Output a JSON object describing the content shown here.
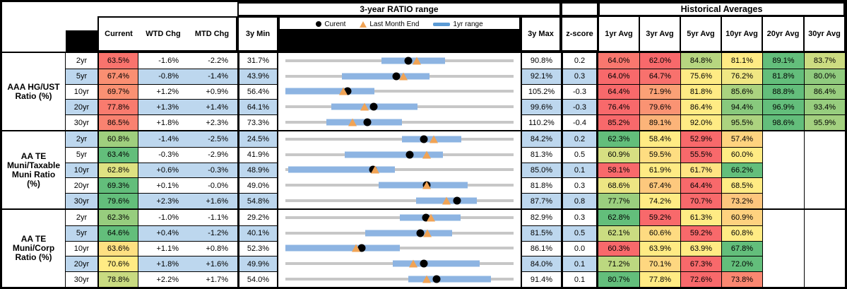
{
  "header": {
    "range_title": "3-year RATIO range",
    "historical_title": "Historical Averages",
    "col_current": "Current",
    "col_wtd": "WTD Chg",
    "col_mtd": "MTD Chg",
    "col_3y_min": "3y Min",
    "col_3y_max": "3y Max",
    "col_zscore": "z-score",
    "avg_cols": [
      "1yr Avg",
      "3yr Avg",
      "5yr Avg",
      "10yr Avg",
      "20yr Avg",
      "30yr Avg"
    ],
    "legend": {
      "current": "Curent",
      "last_month": "Last Month End",
      "range": "1yr range"
    }
  },
  "palette": {
    "scale_red": "#F8696B",
    "scale_yellow": "#FFEB84",
    "scale_green": "#63BE7B",
    "row_stripe_blue": "#BDD7EE",
    "range_bar_blue": "#8DB4E2",
    "track_gray": "#C7C7C7",
    "marker_orange": "#F0A355",
    "marker_black": "#000000"
  },
  "chart_data": {
    "type": "table",
    "title": "3-year RATIO range",
    "embedded_chart": {
      "type": "bullet-range",
      "legend": [
        "Curent",
        "Last Month End",
        "1yr range"
      ],
      "note": "gray track spans 3y min..max; blue bar = 1yr range; black dot = current; orange triangle = last month end"
    },
    "groups": [
      {
        "label_lines": [
          "AAA HG/UST",
          "Ratio (%)"
        ],
        "rows": [
          {
            "tenor": "2yr",
            "current": 63.5,
            "wtd": "-1.6%",
            "mtd": "-2.2%",
            "min": 31.7,
            "max": 90.8,
            "z": "0.2",
            "yr1_range": [
              56.5,
              73.0
            ],
            "avgs": [
              64.0,
              62.0,
              84.8,
              81.1,
              89.1,
              83.7
            ]
          },
          {
            "tenor": "5yr",
            "current": 67.4,
            "wtd": "-0.8%",
            "mtd": "-1.4%",
            "min": 43.9,
            "max": 92.1,
            "z": "0.3",
            "yr1_range": [
              55.9,
              74.3
            ],
            "avgs": [
              64.0,
              64.7,
              75.6,
              76.2,
              81.8,
              80.0
            ]
          },
          {
            "tenor": "10yr",
            "current": 69.7,
            "wtd": "+1.2%",
            "mtd": "+0.9%",
            "min": 56.4,
            "max": 105.2,
            "z": "-0.3",
            "yr1_range": [
              56.4,
              75.4
            ],
            "avgs": [
              64.4,
              71.9,
              81.8,
              85.6,
              88.8,
              86.4
            ]
          },
          {
            "tenor": "20yr",
            "current": 77.8,
            "wtd": "+1.3%",
            "mtd": "+1.4%",
            "min": 64.1,
            "max": 99.6,
            "z": "-0.3",
            "yr1_range": [
              71.2,
              84.7
            ],
            "avgs": [
              76.4,
              79.6,
              86.4,
              94.4,
              96.9,
              93.4
            ]
          },
          {
            "tenor": "30yr",
            "current": 86.5,
            "wtd": "+1.8%",
            "mtd": "+2.3%",
            "min": 73.3,
            "max": 110.2,
            "z": "-0.4",
            "yr1_range": [
              79.9,
              92.1
            ],
            "avgs": [
              85.2,
              89.1,
              92.0,
              95.5,
              98.6,
              95.9
            ]
          }
        ]
      },
      {
        "label_lines": [
          "AA TE",
          "Muni/Taxable",
          "Muni Ratio",
          "(%)"
        ],
        "rows": [
          {
            "tenor": "2yr",
            "current": 60.8,
            "wtd": "-1.4%",
            "mtd": "-2.5%",
            "min": 24.5,
            "max": 84.2,
            "z": "0.2",
            "yr1_range": [
              55.0,
              70.5
            ],
            "avgs": [
              62.3,
              58.4,
              52.9,
              57.4,
              null,
              null
            ]
          },
          {
            "tenor": "5yr",
            "current": 63.4,
            "wtd": "-0.3%",
            "mtd": "-2.9%",
            "min": 41.9,
            "max": 81.3,
            "z": "0.5",
            "yr1_range": [
              52.1,
              69.1
            ],
            "avgs": [
              60.9,
              59.5,
              55.5,
              60.0,
              null,
              null
            ]
          },
          {
            "tenor": "10yr",
            "current": 62.8,
            "wtd": "+0.6%",
            "mtd": "-0.3%",
            "min": 48.9,
            "max": 85.0,
            "z": "0.1",
            "yr1_range": [
              49.3,
              66.2
            ],
            "avgs": [
              58.1,
              61.9,
              61.7,
              66.2,
              null,
              null
            ]
          },
          {
            "tenor": "20yr",
            "current": 69.3,
            "wtd": "+0.1%",
            "mtd": "-0.0%",
            "min": 49.0,
            "max": 81.8,
            "z": "0.3",
            "yr1_range": [
              62.4,
              75.2
            ],
            "avgs": [
              68.6,
              67.4,
              64.4,
              68.5,
              null,
              null
            ]
          },
          {
            "tenor": "30yr",
            "current": 79.6,
            "wtd": "+2.3%",
            "mtd": "+1.6%",
            "min": 54.8,
            "max": 87.7,
            "z": "0.8",
            "yr1_range": [
              73.6,
              82.4
            ],
            "avgs": [
              77.7,
              74.2,
              70.7,
              73.2,
              null,
              null
            ]
          }
        ]
      },
      {
        "label_lines": [
          "AA TE",
          "Muni/Corp",
          "Ratio (%)"
        ],
        "rows": [
          {
            "tenor": "2yr",
            "current": 62.3,
            "wtd": "-1.0%",
            "mtd": "-1.1%",
            "min": 29.2,
            "max": 82.9,
            "z": "0.3",
            "yr1_range": [
              56.1,
              70.5
            ],
            "avgs": [
              62.8,
              59.2,
              61.3,
              60.9,
              null,
              null
            ]
          },
          {
            "tenor": "5yr",
            "current": 64.6,
            "wtd": "+0.4%",
            "mtd": "-1.2%",
            "min": 40.1,
            "max": 81.5,
            "z": "0.5",
            "yr1_range": [
              54.6,
              70.3
            ],
            "avgs": [
              62.1,
              60.6,
              59.2,
              60.8,
              null,
              null
            ]
          },
          {
            "tenor": "10yr",
            "current": 63.6,
            "wtd": "+1.1%",
            "mtd": "+0.8%",
            "min": 52.3,
            "max": 86.1,
            "z": "0.0",
            "yr1_range": [
              52.3,
              69.2
            ],
            "avgs": [
              60.3,
              63.9,
              63.9,
              67.8,
              null,
              null
            ]
          },
          {
            "tenor": "20yr",
            "current": 70.6,
            "wtd": "+1.8%",
            "mtd": "+1.6%",
            "min": 49.9,
            "max": 84.0,
            "z": "0.1",
            "yr1_range": [
              65.9,
              78.9
            ],
            "avgs": [
              71.2,
              70.1,
              67.3,
              72.0,
              null,
              null
            ]
          },
          {
            "tenor": "30yr",
            "current": 78.8,
            "wtd": "+2.2%",
            "mtd": "+1.7%",
            "min": 54.0,
            "max": 91.4,
            "z": "0.1",
            "yr1_range": [
              74.2,
              87.7
            ],
            "avgs": [
              80.7,
              77.8,
              72.6,
              73.8,
              null,
              null
            ]
          }
        ]
      }
    ]
  }
}
